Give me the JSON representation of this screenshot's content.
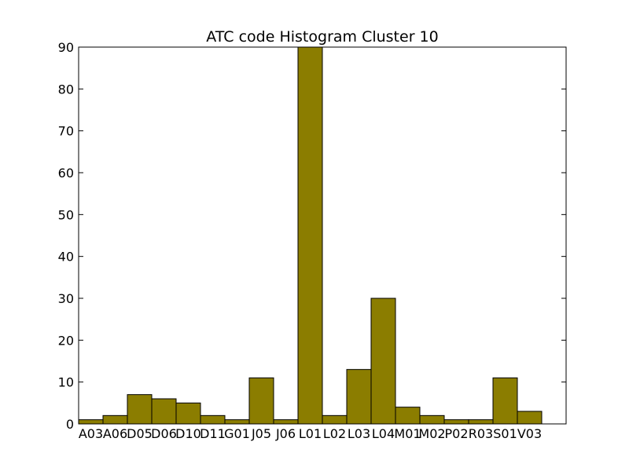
{
  "chart_data": {
    "type": "bar",
    "title": "ATC code Histogram Cluster 10",
    "xlabel": "",
    "ylabel": "",
    "categories": [
      "A03",
      "A06",
      "D05",
      "D06",
      "D10",
      "D11",
      "G01",
      "J05",
      "J06",
      "L01",
      "L02",
      "L03",
      "L04",
      "M01",
      "M02",
      "P02",
      "R03",
      "S01",
      "V03"
    ],
    "values": [
      1,
      2,
      7,
      6,
      5,
      2,
      1,
      11,
      1,
      90,
      2,
      13,
      30,
      4,
      2,
      1,
      1,
      11,
      3
    ],
    "ylim": [
      0,
      90
    ],
    "yticks": [
      0,
      10,
      20,
      30,
      40,
      50,
      60,
      70,
      80,
      90
    ],
    "bar_color": "#8b7d00",
    "grid": false,
    "legend": "none"
  }
}
